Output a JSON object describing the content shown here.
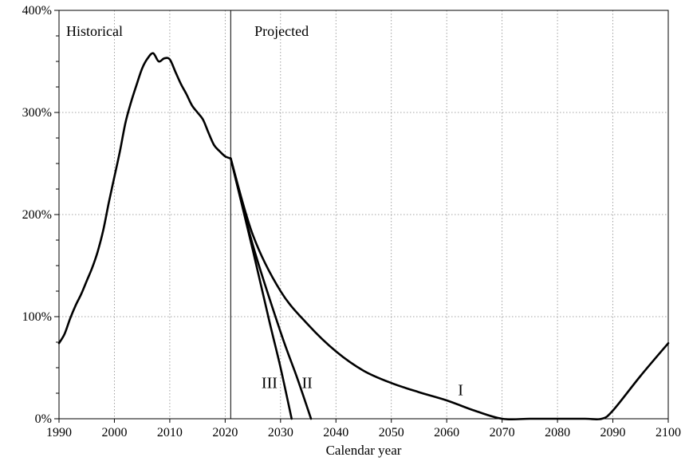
{
  "chart_data": {
    "type": "line",
    "title": "",
    "xlabel": "Calendar year",
    "ylabel": "",
    "xlim": [
      1990,
      2100
    ],
    "ylim": [
      0,
      400
    ],
    "x_ticks": [
      1990,
      2000,
      2010,
      2020,
      2030,
      2040,
      2050,
      2060,
      2070,
      2080,
      2090,
      2100
    ],
    "y_ticks": [
      0,
      100,
      200,
      300,
      400
    ],
    "y_tick_labels": [
      "0%",
      "100%",
      "200%",
      "300%",
      "400%"
    ],
    "grid": true,
    "legend": "none",
    "divider_year": 2021,
    "region_labels": {
      "historical": "Historical",
      "projected": "Projected"
    },
    "series": [
      {
        "name": "Historical",
        "label": "",
        "x": [
          1990,
          1991,
          1992,
          1993,
          1994,
          1995,
          1996,
          1997,
          1998,
          1999,
          2000,
          2001,
          2002,
          2003,
          2004,
          2005,
          2006,
          2007,
          2008,
          2009,
          2010,
          2011,
          2012,
          2013,
          2014,
          2015,
          2016,
          2017,
          2018,
          2019,
          2020,
          2021
        ],
        "values": [
          74,
          83,
          98,
          111,
          122,
          135,
          148,
          164,
          185,
          212,
          237,
          262,
          290,
          310,
          327,
          343,
          353,
          358,
          350,
          353,
          352,
          340,
          328,
          318,
          307,
          300,
          293,
          280,
          268,
          262,
          257,
          255
        ]
      },
      {
        "name": "I",
        "label": "I",
        "x": [
          2021,
          2025,
          2030,
          2035,
          2040,
          2045,
          2050,
          2055,
          2060,
          2065,
          2070,
          2075,
          2080,
          2085,
          2088,
          2090,
          2095,
          2100
        ],
        "values": [
          255,
          180,
          125,
          92,
          66,
          47,
          35,
          26,
          18,
          8,
          0,
          0,
          0,
          0,
          0,
          8,
          42,
          74
        ]
      },
      {
        "name": "II",
        "label": "II",
        "x": [
          2021,
          2025,
          2030,
          2033,
          2035.5
        ],
        "values": [
          255,
          170,
          85,
          40,
          0
        ]
      },
      {
        "name": "III",
        "label": "III",
        "x": [
          2021,
          2025,
          2028,
          2030,
          2032
        ],
        "values": [
          255,
          165,
          95,
          50,
          0
        ]
      }
    ]
  }
}
